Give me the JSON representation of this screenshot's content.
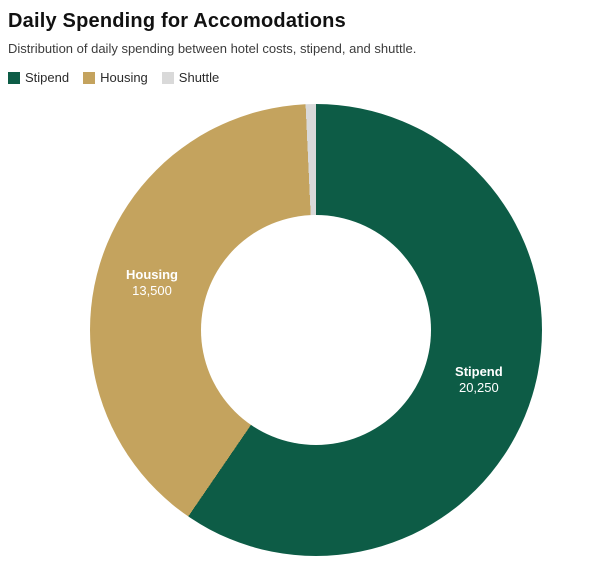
{
  "header": {
    "title": "Daily Spending for Accomodations",
    "subtitle": "Distribution of daily spending between hotel costs, stipend, and shuttle."
  },
  "legend": [
    {
      "label": "Stipend",
      "color": "#0d5c46"
    },
    {
      "label": "Housing",
      "color": "#c4a35e"
    },
    {
      "label": "Shuttle",
      "color": "#d9d9d9"
    }
  ],
  "chart_data": {
    "type": "pie",
    "donut": true,
    "title": "Daily Spending for Accomodations",
    "subtitle": "Distribution of daily spending between hotel costs, stipend, and shuttle.",
    "categories": [
      "Stipend",
      "Housing",
      "Shuttle"
    ],
    "values": [
      20250,
      13500,
      250
    ],
    "colors": [
      "#0d5c46",
      "#c4a35e",
      "#d9d9d9"
    ],
    "slice_labels": [
      {
        "name": "Stipend",
        "value_text": "20,250",
        "show": true
      },
      {
        "name": "Housing",
        "value_text": "13,500",
        "show": true
      },
      {
        "name": "Shuttle",
        "value_text": "",
        "show": false
      }
    ],
    "start_angle_deg": 0,
    "direction": "clockwise",
    "legend_position": "top-left",
    "hole_ratio": 0.51
  }
}
